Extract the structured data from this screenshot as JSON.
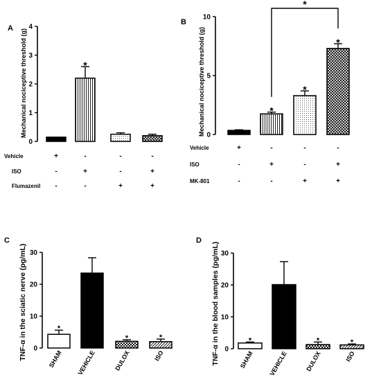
{
  "chart_data": [
    {
      "panel": "A",
      "type": "bar",
      "ylabel": "Mechanical nociceptive threshold (g)",
      "ylim": [
        0,
        4
      ],
      "yticks": [
        0,
        1,
        2,
        3,
        4
      ],
      "groups": 4,
      "values": [
        0.15,
        2.2,
        0.25,
        0.2
      ],
      "errors": [
        0.0,
        0.4,
        0.05,
        0.05
      ],
      "fills": [
        "solid",
        "vlines",
        "dots",
        "hatch"
      ],
      "stars": [
        false,
        true,
        false,
        false
      ],
      "rows": [
        {
          "label": "Vehicle",
          "signs": [
            "+",
            "-",
            "-",
            "-"
          ]
        },
        {
          "label": "ISO",
          "signs": [
            "-",
            "+",
            "-",
            "+"
          ]
        },
        {
          "label": "Flumazenil",
          "signs": [
            "-",
            "-",
            "+",
            "+"
          ]
        }
      ]
    },
    {
      "panel": "B",
      "type": "bar",
      "ylabel": "Mechanical nociceptive threshold (g)",
      "ylim": [
        0,
        10
      ],
      "yticks": [
        0,
        5,
        10
      ],
      "groups": 4,
      "values": [
        0.35,
        1.75,
        3.3,
        7.3
      ],
      "errors": [
        0.05,
        0.15,
        0.4,
        0.4
      ],
      "fills": [
        "solid",
        "vlines",
        "dots",
        "hatch"
      ],
      "stars": [
        false,
        true,
        true,
        true
      ],
      "bracket": {
        "from": 1,
        "to": 3,
        "label": "*"
      },
      "rows": [
        {
          "label": "Vehicle",
          "signs": [
            "+",
            "-",
            "-",
            "-"
          ]
        },
        {
          "label": "ISO",
          "signs": [
            "-",
            "+",
            "-",
            "+"
          ]
        },
        {
          "label": "MK-801",
          "signs": [
            "-",
            "-",
            "+",
            "+"
          ]
        }
      ]
    },
    {
      "panel": "C",
      "type": "bar",
      "ylabel": "TNF-α in the sciatic nerve (pg/mL)",
      "ylim": [
        0,
        30
      ],
      "yticks": [
        0,
        10,
        20,
        30
      ],
      "categories": [
        "SHAM",
        "VEHICLE",
        "DULOX",
        "ISO"
      ],
      "values": [
        4.3,
        23.5,
        2.1,
        2.0
      ],
      "errors": [
        1.3,
        4.8,
        0.5,
        0.8
      ],
      "fills": [
        "white",
        "solid",
        "check",
        "stripe"
      ],
      "stars": [
        true,
        false,
        true,
        true
      ]
    },
    {
      "panel": "D",
      "type": "bar",
      "ylabel": "TNF-α in the blood samples (pg/mL)",
      "ylim": [
        0,
        30
      ],
      "yticks": [
        0,
        10,
        20,
        30
      ],
      "categories": [
        "SHAM",
        "VEHICLE",
        "DULOX",
        "ISO"
      ],
      "values": [
        1.8,
        20.1,
        1.3,
        1.2
      ],
      "errors": [
        0.3,
        7.2,
        0.8,
        0.3
      ],
      "fills": [
        "white",
        "solid",
        "check",
        "stripe"
      ],
      "stars": [
        true,
        false,
        true,
        true
      ]
    }
  ]
}
